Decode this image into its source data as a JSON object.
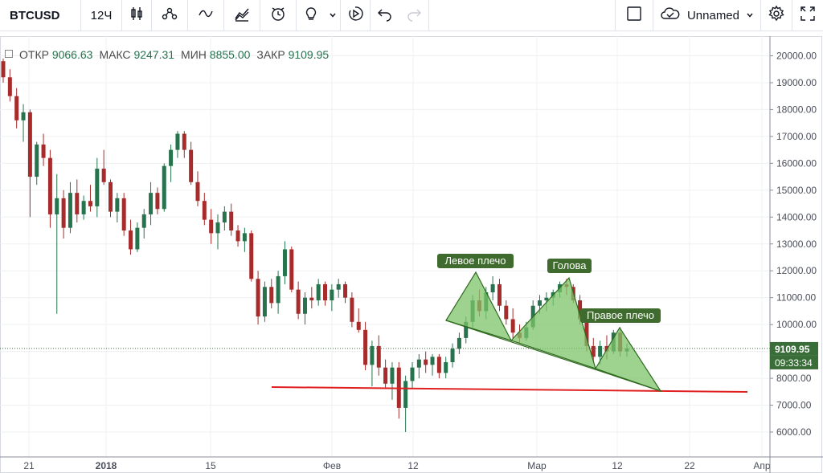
{
  "toolbar": {
    "symbol": "BTCUSD",
    "interval": "12Ч",
    "layout_name": "Unnamed",
    "icons": [
      "candles-icon",
      "indicators-icon",
      "compare-icon",
      "templates-icon",
      "alert-icon",
      "lightbulb-icon",
      "chevron-down-icon",
      "replay-icon",
      "undo-icon",
      "redo-icon",
      "layout-square-icon",
      "cloud-icon",
      "chevron-down-icon",
      "settings-gear-icon",
      "fullscreen-icon"
    ]
  },
  "legend": {
    "open_label": "ОТКР",
    "open": "9066.63",
    "high_label": "МАКС",
    "high": "9247.31",
    "low_label": "МИН",
    "low": "8855.00",
    "close_label": "ЗАКР",
    "close": "9109.95"
  },
  "price_axis": {
    "ticks": [
      "20000.00",
      "19000.00",
      "18000.00",
      "17000.00",
      "16000.00",
      "15000.00",
      "14000.00",
      "13000.00",
      "12000.00",
      "11000.00",
      "10000.00",
      "9000.00",
      "8000.00",
      "7000.00",
      "6000.00"
    ],
    "current_price": "9109.95",
    "countdown": "09:33:34"
  },
  "time_axis": {
    "ticks": [
      "21",
      "2018",
      "15",
      "Фев",
      "12",
      "Мар",
      "12",
      "22",
      "Апр"
    ]
  },
  "annotations": {
    "left_shoulder": "Левое плечо",
    "head": "Голова",
    "right_shoulder": "Правое плечо"
  },
  "colors": {
    "up": "#26734d",
    "down": "#a82b2b",
    "pattern_fill": "#7ec46a",
    "pattern_stroke": "#2f6b1f",
    "label_bg": "#3f6b2e",
    "trendline": "#e02020",
    "price_label_bg": "#3a6e38"
  },
  "chart_data": {
    "type": "candlestick",
    "symbol": "BTCUSD",
    "interval": "12Ч",
    "ylim": [
      5600,
      20400
    ],
    "ohlc": [
      [
        19800,
        19900,
        19000,
        19200
      ],
      [
        19200,
        19500,
        18300,
        18500
      ],
      [
        18500,
        18800,
        17300,
        17600
      ],
      [
        17600,
        18200,
        16800,
        17900
      ],
      [
        17900,
        18000,
        14000,
        15500
      ],
      [
        15500,
        16800,
        15200,
        16700
      ],
      [
        16700,
        17100,
        15900,
        16200
      ],
      [
        16200,
        16500,
        13600,
        14100
      ],
      [
        14100,
        15600,
        10400,
        14700
      ],
      [
        14700,
        15000,
        13200,
        13600
      ],
      [
        13600,
        15300,
        13400,
        14900
      ],
      [
        14900,
        15400,
        13800,
        14100
      ],
      [
        14100,
        14800,
        13900,
        14600
      ],
      [
        14600,
        15200,
        14200,
        14400
      ],
      [
        14400,
        16200,
        14000,
        15800
      ],
      [
        15800,
        16500,
        15200,
        15300
      ],
      [
        15300,
        15400,
        14000,
        14200
      ],
      [
        14200,
        14900,
        13800,
        14700
      ],
      [
        14700,
        14900,
        13300,
        13500
      ],
      [
        13500,
        13900,
        12600,
        12800
      ],
      [
        12800,
        13800,
        12700,
        13600
      ],
      [
        13600,
        14300,
        13200,
        14100
      ],
      [
        14100,
        15300,
        13700,
        14900
      ],
      [
        14900,
        15100,
        14100,
        14300
      ],
      [
        14300,
        16000,
        14200,
        15900
      ],
      [
        15900,
        16700,
        15300,
        16500
      ],
      [
        16500,
        17200,
        16200,
        17100
      ],
      [
        17100,
        17200,
        16200,
        16500
      ],
      [
        16500,
        16800,
        15200,
        15300
      ],
      [
        15300,
        15700,
        14400,
        14600
      ],
      [
        14600,
        14900,
        13700,
        13900
      ],
      [
        13900,
        14300,
        13000,
        13400
      ],
      [
        13400,
        14100,
        12800,
        13800
      ],
      [
        13800,
        14400,
        13500,
        14200
      ],
      [
        14200,
        14500,
        13300,
        13500
      ],
      [
        13500,
        13700,
        12900,
        13100
      ],
      [
        13100,
        13600,
        12700,
        13400
      ],
      [
        13400,
        13500,
        11600,
        11700
      ],
      [
        11700,
        12000,
        10000,
        10300
      ],
      [
        10300,
        11600,
        10100,
        11400
      ],
      [
        11400,
        11700,
        10600,
        10800
      ],
      [
        10800,
        12000,
        10400,
        11800
      ],
      [
        11800,
        13100,
        11500,
        12800
      ],
      [
        12800,
        12900,
        11200,
        11300
      ],
      [
        11300,
        11600,
        10200,
        10400
      ],
      [
        10400,
        11200,
        10000,
        11000
      ],
      [
        11000,
        11400,
        10600,
        10900
      ],
      [
        10900,
        11700,
        10700,
        11500
      ],
      [
        11500,
        11600,
        10700,
        10900
      ],
      [
        10900,
        11500,
        10500,
        11300
      ],
      [
        11300,
        11700,
        11000,
        11500
      ],
      [
        11500,
        11600,
        10800,
        11000
      ],
      [
        11000,
        11200,
        9900,
        10100
      ],
      [
        10100,
        10600,
        9700,
        9800
      ],
      [
        9800,
        10100,
        8300,
        8500
      ],
      [
        8500,
        9400,
        7700,
        9200
      ],
      [
        9200,
        9600,
        8100,
        8400
      ],
      [
        8400,
        8700,
        7600,
        7800
      ],
      [
        7800,
        8600,
        7200,
        8400
      ],
      [
        8400,
        8600,
        6500,
        6900
      ],
      [
        6900,
        8100,
        6000,
        7900
      ],
      [
        7900,
        8600,
        7600,
        8400
      ],
      [
        8400,
        8900,
        8000,
        8700
      ],
      [
        8700,
        9000,
        8200,
        8500
      ],
      [
        8500,
        8900,
        8100,
        8800
      ],
      [
        8800,
        8900,
        8000,
        8200
      ],
      [
        8200,
        8800,
        8000,
        8600
      ],
      [
        8600,
        9300,
        8400,
        9100
      ],
      [
        9100,
        9700,
        8900,
        9500
      ],
      [
        9500,
        10300,
        9300,
        10100
      ],
      [
        10100,
        11100,
        9900,
        10900
      ],
      [
        10900,
        11300,
        10300,
        10500
      ],
      [
        10500,
        11400,
        10200,
        11200
      ],
      [
        11200,
        11800,
        10900,
        11500
      ],
      [
        11500,
        11700,
        10500,
        10700
      ],
      [
        10700,
        10900,
        10000,
        10200
      ],
      [
        10200,
        10600,
        9500,
        9700
      ],
      [
        9700,
        10000,
        9300,
        9500
      ],
      [
        9500,
        10100,
        9400,
        9900
      ],
      [
        9900,
        10900,
        9800,
        10700
      ],
      [
        10700,
        11100,
        10400,
        10900
      ],
      [
        10900,
        11200,
        10500,
        11000
      ],
      [
        11000,
        11300,
        10700,
        11200
      ],
      [
        11200,
        11600,
        11000,
        11500
      ],
      [
        11500,
        11700,
        11100,
        11400
      ],
      [
        11400,
        11500,
        10800,
        10900
      ],
      [
        10900,
        11100,
        10000,
        10200
      ],
      [
        10200,
        10400,
        9000,
        9200
      ],
      [
        9200,
        9500,
        8600,
        8800
      ],
      [
        8800,
        9400,
        8500,
        9200
      ],
      [
        9200,
        9600,
        8700,
        9000
      ],
      [
        9000,
        9800,
        8900,
        9700
      ],
      [
        9700,
        9900,
        8800,
        9000
      ],
      [
        9000,
        9300,
        8800,
        9110
      ]
    ]
  }
}
